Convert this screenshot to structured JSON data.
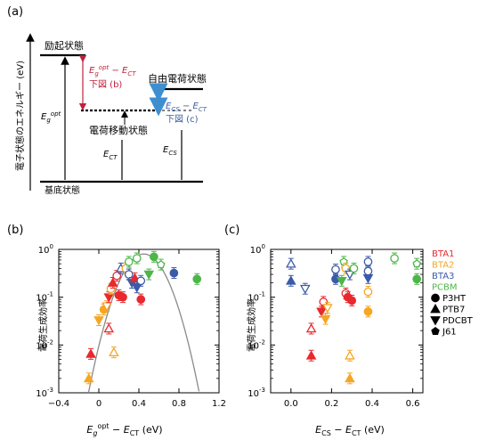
{
  "panel_labels": {
    "a": "(a)",
    "b": "(b)",
    "c": "(c)"
  },
  "energy_diagram": {
    "y_axis_label": "電子状態のエネルギー (eV)",
    "excited_state": "励起状態",
    "ground_state": "基底状態",
    "ct_state": "電荷移動状態",
    "free_charge_state": "自由電荷状態",
    "eg_opt_label": "Eg opt",
    "ect_label": "ECT",
    "ecs_label": "ECS",
    "gap_b_label": "Eg opt − ECT",
    "gap_b_ref": "下図 (b)",
    "gap_c_label": "ECS − ECT",
    "gap_c_ref": "下図 (c)"
  },
  "legend": {
    "acceptors": [
      {
        "name": "BTA1",
        "color": "#e8292e"
      },
      {
        "name": "BTA2",
        "color": "#f5a623"
      },
      {
        "name": "BTA3",
        "color": "#3b5ba8"
      },
      {
        "name": "PCBM",
        "color": "#4cb649"
      }
    ],
    "donors": [
      {
        "name": "P3HT",
        "marker": "circle"
      },
      {
        "name": "PTB7",
        "marker": "triangle-up"
      },
      {
        "name": "PDCBT",
        "marker": "triangle-down"
      },
      {
        "name": "J61",
        "marker": "pentagon"
      }
    ]
  },
  "chart_data": [
    {
      "type": "scatter",
      "panel": "b",
      "xlabel": "Eg opt − ECT (eV)",
      "ylabel": "電荷生成効率",
      "xlim": [
        -0.4,
        1.2
      ],
      "xticks": [
        -0.4,
        0,
        0.4,
        0.8,
        1.2
      ],
      "ylim": [
        0.001,
        1
      ],
      "yscale": "log",
      "yticks": [
        "10-3",
        "10-2",
        "10-1",
        "100"
      ],
      "fit_curve": {
        "shape": "parabola in log scale",
        "peak_x": 0.45,
        "peak_y": 0.8
      },
      "points": [
        {
          "x": -0.08,
          "y": 0.0065,
          "color": "#e8292e",
          "marker": "triangle-up",
          "filled": true
        },
        {
          "x": -0.1,
          "y": 0.002,
          "color": "#f5a623",
          "marker": "triangle-up",
          "filled": true
        },
        {
          "x": 0.0,
          "y": 0.033,
          "color": "#f5a623",
          "marker": "triangle-down",
          "filled": true
        },
        {
          "x": 0.05,
          "y": 0.055,
          "color": "#f5a623",
          "marker": "circle",
          "filled": true
        },
        {
          "x": 0.08,
          "y": 0.065,
          "color": "#f5a623",
          "marker": "triangle-down",
          "filled": false
        },
        {
          "x": 0.1,
          "y": 0.1,
          "color": "#e8292e",
          "marker": "triangle-down",
          "filled": true
        },
        {
          "x": 0.1,
          "y": 0.022,
          "color": "#e8292e",
          "marker": "triangle-up",
          "filled": false
        },
        {
          "x": 0.12,
          "y": 0.15,
          "color": "#f5a623",
          "marker": "circle",
          "filled": false
        },
        {
          "x": 0.14,
          "y": 0.2,
          "color": "#e8292e",
          "marker": "triangle-up",
          "filled": true
        },
        {
          "x": 0.15,
          "y": 0.007,
          "color": "#f5a623",
          "marker": "triangle-up",
          "filled": false
        },
        {
          "x": 0.18,
          "y": 0.28,
          "color": "#e8292e",
          "marker": "circle",
          "filled": false
        },
        {
          "x": 0.2,
          "y": 0.11,
          "color": "#e8292e",
          "marker": "circle",
          "filled": true
        },
        {
          "x": 0.22,
          "y": 0.4,
          "color": "#3b5ba8",
          "marker": "triangle-up",
          "filled": false
        },
        {
          "x": 0.24,
          "y": 0.1,
          "color": "#e8292e",
          "marker": "circle",
          "filled": true
        },
        {
          "x": 0.27,
          "y": 0.4,
          "color": "#f5a623",
          "marker": "circle",
          "filled": false
        },
        {
          "x": 0.3,
          "y": 0.3,
          "color": "#3b5ba8",
          "marker": "circle",
          "filled": false
        },
        {
          "x": 0.3,
          "y": 0.55,
          "color": "#4cb649",
          "marker": "circle",
          "filled": false
        },
        {
          "x": 0.33,
          "y": 0.2,
          "color": "#3b5ba8",
          "marker": "triangle-down",
          "filled": true
        },
        {
          "x": 0.36,
          "y": 0.25,
          "color": "#e8292e",
          "marker": "triangle-up",
          "filled": true
        },
        {
          "x": 0.38,
          "y": 0.16,
          "color": "#3b5ba8",
          "marker": "triangle-down",
          "filled": true
        },
        {
          "x": 0.38,
          "y": 0.65,
          "color": "#4cb649",
          "marker": "circle",
          "filled": false
        },
        {
          "x": 0.42,
          "y": 0.09,
          "color": "#e8292e",
          "marker": "circle",
          "filled": true
        },
        {
          "x": 0.42,
          "y": 0.22,
          "color": "#3b5ba8",
          "marker": "circle",
          "filled": false
        },
        {
          "x": 0.5,
          "y": 0.3,
          "color": "#4cb649",
          "marker": "triangle-down",
          "filled": true
        },
        {
          "x": 0.55,
          "y": 0.7,
          "color": "#4cb649",
          "marker": "circle",
          "filled": true
        },
        {
          "x": 0.62,
          "y": 0.48,
          "color": "#4cb649",
          "marker": "pentagon",
          "filled": false
        },
        {
          "x": 0.75,
          "y": 0.32,
          "color": "#3b5ba8",
          "marker": "circle",
          "filled": true
        },
        {
          "x": 0.98,
          "y": 0.24,
          "color": "#4cb649",
          "marker": "circle",
          "filled": true
        }
      ]
    },
    {
      "type": "scatter",
      "panel": "c",
      "xlabel": "ECS − ECT (eV)",
      "ylabel": "電荷生成効率",
      "xlim": [
        -0.1,
        0.65
      ],
      "xticks": [
        0.0,
        0.2,
        0.4,
        0.6
      ],
      "ylim": [
        0.001,
        1
      ],
      "yscale": "log",
      "yticks": [
        "10-3",
        "10-2",
        "10-1",
        "100"
      ],
      "points": [
        {
          "x": 0.0,
          "y": 0.22,
          "color": "#3b5ba8",
          "marker": "triangle-up",
          "filled": true
        },
        {
          "x": 0.0,
          "y": 0.5,
          "color": "#3b5ba8",
          "marker": "triangle-up",
          "filled": false
        },
        {
          "x": 0.07,
          "y": 0.15,
          "color": "#3b5ba8",
          "marker": "triangle-down",
          "filled": false
        },
        {
          "x": 0.1,
          "y": 0.006,
          "color": "#e8292e",
          "marker": "triangle-up",
          "filled": true
        },
        {
          "x": 0.1,
          "y": 0.022,
          "color": "#e8292e",
          "marker": "triangle-up",
          "filled": false
        },
        {
          "x": 0.15,
          "y": 0.05,
          "color": "#e8292e",
          "marker": "triangle-down",
          "filled": true
        },
        {
          "x": 0.16,
          "y": 0.08,
          "color": "#e8292e",
          "marker": "circle",
          "filled": false
        },
        {
          "x": 0.17,
          "y": 0.035,
          "color": "#f5a623",
          "marker": "triangle-down",
          "filled": true
        },
        {
          "x": 0.18,
          "y": 0.06,
          "color": "#f5a623",
          "marker": "triangle-down",
          "filled": false
        },
        {
          "x": 0.22,
          "y": 0.24,
          "color": "#3b5ba8",
          "marker": "circle",
          "filled": true
        },
        {
          "x": 0.22,
          "y": 0.38,
          "color": "#3b5ba8",
          "marker": "circle",
          "filled": false
        },
        {
          "x": 0.25,
          "y": 0.22,
          "color": "#4cb649",
          "marker": "triangle-down",
          "filled": true
        },
        {
          "x": 0.26,
          "y": 0.55,
          "color": "#4cb649",
          "marker": "pentagon",
          "filled": false
        },
        {
          "x": 0.27,
          "y": 0.12,
          "color": "#e8292e",
          "marker": "circle",
          "filled": false
        },
        {
          "x": 0.27,
          "y": 0.4,
          "color": "#f5a623",
          "marker": "circle",
          "filled": false
        },
        {
          "x": 0.28,
          "y": 0.1,
          "color": "#e8292e",
          "marker": "circle",
          "filled": true
        },
        {
          "x": 0.29,
          "y": 0.3,
          "color": "#3b5ba8",
          "marker": "triangle-down",
          "filled": false
        },
        {
          "x": 0.29,
          "y": 0.006,
          "color": "#f5a623",
          "marker": "triangle-up",
          "filled": false
        },
        {
          "x": 0.29,
          "y": 0.002,
          "color": "#f5a623",
          "marker": "triangle-up",
          "filled": true
        },
        {
          "x": 0.3,
          "y": 0.085,
          "color": "#e8292e",
          "marker": "circle",
          "filled": true
        },
        {
          "x": 0.31,
          "y": 0.4,
          "color": "#4cb649",
          "marker": "circle",
          "filled": false
        },
        {
          "x": 0.38,
          "y": 0.25,
          "color": "#3b5ba8",
          "marker": "triangle-down",
          "filled": true
        },
        {
          "x": 0.38,
          "y": 0.55,
          "color": "#3b5ba8",
          "marker": "circle",
          "filled": false
        },
        {
          "x": 0.38,
          "y": 0.35,
          "color": "#3b5ba8",
          "marker": "circle",
          "filled": false
        },
        {
          "x": 0.38,
          "y": 0.13,
          "color": "#f5a623",
          "marker": "circle",
          "filled": false
        },
        {
          "x": 0.38,
          "y": 0.05,
          "color": "#f5a623",
          "marker": "circle",
          "filled": true
        },
        {
          "x": 0.51,
          "y": 0.65,
          "color": "#4cb649",
          "marker": "circle",
          "filled": false
        },
        {
          "x": 0.62,
          "y": 0.5,
          "color": "#4cb649",
          "marker": "pentagon",
          "filled": false
        },
        {
          "x": 0.62,
          "y": 0.24,
          "color": "#4cb649",
          "marker": "circle",
          "filled": true
        }
      ]
    }
  ]
}
